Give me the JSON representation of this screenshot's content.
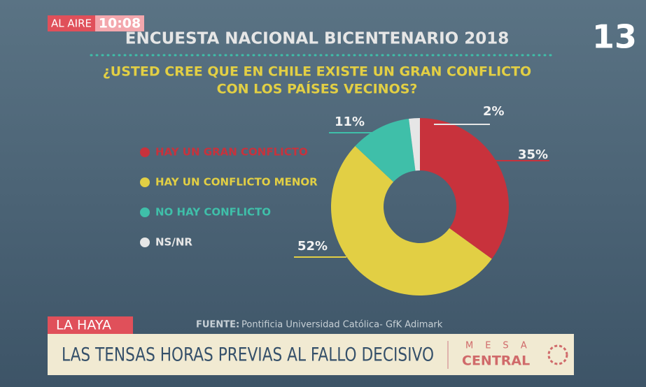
{
  "broadcast": {
    "on_air": "AL AIRE",
    "clock": "10:08",
    "channel": "13",
    "topic": "LA HAYA",
    "headline": "LAS TENSAS HORAS PREVIAS AL FALLO DECISIVO",
    "program": [
      "MESA",
      "CENTRAL"
    ],
    "source_label": "FUENTE:",
    "source": "Pontificia Universidad Católica- GfK Adimark"
  },
  "chart_data": {
    "type": "donut",
    "title": "ENCUESTA NACIONAL BICENTENARIO 2018",
    "subtitle": [
      "¿USTED CREE QUE EN CHILE EXISTE UN GRAN CONFLICTO",
      "CON LOS PAÍSES VECINOS?"
    ],
    "categories": [
      "HAY UN GRAN CONFLICTO",
      "HAY UN CONFLICTO MENOR",
      "NO HAY CONFLICTO",
      "NS/NR"
    ],
    "values": [
      35,
      52,
      11,
      2
    ],
    "value_labels": [
      "35%",
      "52%",
      "11%",
      "2%"
    ],
    "colors": [
      "#c8323c",
      "#e2cf44",
      "#3fbfa9",
      "#e6e6e6"
    ]
  }
}
